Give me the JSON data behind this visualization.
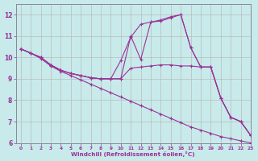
{
  "background_color": "#c8eaea",
  "line_color": "#993399",
  "grid_color": "#bbbbbb",
  "xlabel": "Windchill (Refroidissement éolien,°C)",
  "xlim": [
    -0.5,
    23
  ],
  "ylim": [
    6,
    12.5
  ],
  "yticks": [
    6,
    7,
    8,
    9,
    10,
    11,
    12
  ],
  "xticks": [
    0,
    1,
    2,
    3,
    4,
    5,
    6,
    7,
    8,
    9,
    10,
    11,
    12,
    13,
    14,
    15,
    16,
    17,
    18,
    19,
    20,
    21,
    22,
    23
  ],
  "series": [
    {
      "x": [
        0,
        1,
        2,
        3,
        4,
        5,
        6,
        7,
        8,
        9,
        10,
        11,
        12,
        13,
        14,
        15,
        16,
        17,
        18,
        19,
        20,
        21,
        22,
        23
      ],
      "y": [
        10.4,
        10.2,
        9.95,
        9.6,
        9.35,
        9.15,
        8.95,
        8.75,
        8.55,
        8.35,
        8.15,
        7.95,
        7.75,
        7.55,
        7.35,
        7.15,
        6.95,
        6.75,
        6.6,
        6.45,
        6.3,
        6.2,
        6.1,
        6.0
      ]
    },
    {
      "x": [
        0,
        1,
        2,
        3,
        4,
        5,
        6,
        7,
        8,
        9,
        10,
        11,
        12,
        13,
        14,
        15,
        16,
        17,
        18,
        19,
        20,
        21,
        22,
        23
      ],
      "y": [
        10.4,
        10.2,
        10.0,
        9.65,
        9.4,
        9.25,
        9.15,
        9.05,
        9.0,
        9.0,
        9.0,
        9.5,
        9.55,
        9.6,
        9.65,
        9.65,
        9.6,
        9.6,
        9.55,
        9.55,
        8.1,
        7.2,
        7.0,
        6.35
      ]
    },
    {
      "x": [
        0,
        1,
        2,
        3,
        4,
        5,
        6,
        7,
        8,
        9,
        10,
        11,
        12,
        13,
        14,
        15,
        16,
        17,
        18,
        19,
        20,
        21,
        22,
        23
      ],
      "y": [
        10.4,
        10.2,
        10.0,
        9.65,
        9.4,
        9.25,
        9.15,
        9.05,
        9.0,
        9.0,
        9.85,
        10.95,
        11.55,
        11.65,
        11.7,
        11.85,
        12.0,
        10.45,
        9.55,
        9.55,
        8.1,
        7.2,
        7.0,
        6.35
      ]
    },
    {
      "x": [
        0,
        1,
        2,
        3,
        4,
        5,
        6,
        7,
        8,
        9,
        10,
        11,
        12,
        13,
        14,
        15,
        16,
        17,
        18,
        19,
        20,
        21,
        22,
        23
      ],
      "y": [
        10.4,
        10.2,
        10.0,
        9.65,
        9.4,
        9.25,
        9.15,
        9.05,
        9.0,
        9.0,
        9.0,
        11.0,
        9.9,
        11.65,
        11.75,
        11.9,
        12.0,
        10.45,
        9.55,
        9.55,
        8.1,
        7.2,
        7.0,
        6.35
      ]
    }
  ]
}
